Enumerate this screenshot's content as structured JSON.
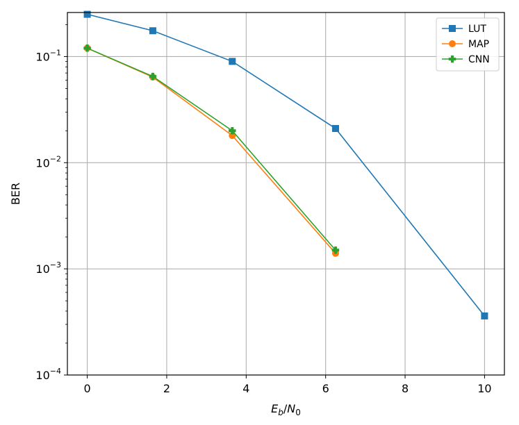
{
  "chart_data": {
    "type": "line",
    "title": "",
    "xlabel": {
      "base": "E",
      "base_sub": "b",
      "sep": "/",
      "denom": "N",
      "denom_sub": "0"
    },
    "ylabel": "BER",
    "yscale": "log",
    "xlim": [
      -0.5,
      10.5
    ],
    "ylim": [
      0.0001,
      0.26
    ],
    "xticks": [
      0,
      2,
      4,
      6,
      8,
      10
    ],
    "xtick_labels": [
      "0",
      "2",
      "4",
      "6",
      "8",
      "10"
    ],
    "yticks": [
      {
        "value": 0.0001,
        "base": "10",
        "exp": "−4"
      },
      {
        "value": 0.001,
        "base": "10",
        "exp": "−3"
      },
      {
        "value": 0.01,
        "base": "10",
        "exp": "−2"
      },
      {
        "value": 0.1,
        "base": "10",
        "exp": "−1"
      }
    ],
    "grid": true,
    "legend_position": "top-right",
    "series": [
      {
        "name": "LUT",
        "color": "#1f77b4",
        "marker": "square",
        "x": [
          0,
          1.65,
          3.65,
          6.25,
          10
        ],
        "y": [
          0.25,
          0.175,
          0.09,
          0.021,
          0.00036
        ]
      },
      {
        "name": "MAP",
        "color": "#ff7f0e",
        "marker": "circle",
        "x": [
          0,
          1.65,
          3.65,
          6.25
        ],
        "y": [
          0.12,
          0.064,
          0.018,
          0.0014
        ]
      },
      {
        "name": "CNN",
        "color": "#2ca02c",
        "marker": "plus",
        "x": [
          0,
          1.65,
          3.65,
          6.25
        ],
        "y": [
          0.12,
          0.065,
          0.02,
          0.0015
        ]
      }
    ]
  }
}
